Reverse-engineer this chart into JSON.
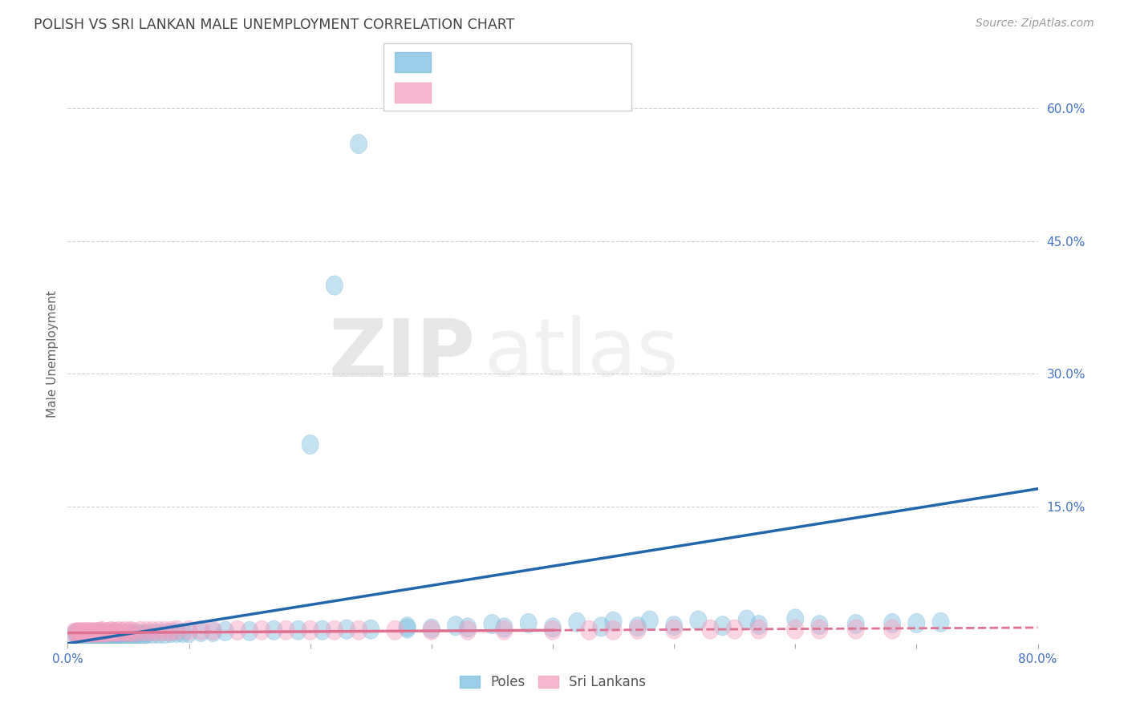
{
  "title": "POLISH VS SRI LANKAN MALE UNEMPLOYMENT CORRELATION CHART",
  "source_text": "Source: ZipAtlas.com",
  "ylabel": "Male Unemployment",
  "watermark_zip": "ZIP",
  "watermark_atlas": "atlas",
  "xlim": [
    0.0,
    0.8
  ],
  "ylim": [
    -0.005,
    0.65
  ],
  "xticks": [
    0.0,
    0.1,
    0.2,
    0.3,
    0.4,
    0.5,
    0.6,
    0.7,
    0.8
  ],
  "xtick_labels": [
    "0.0%",
    "",
    "",
    "",
    "",
    "",
    "",
    "",
    "80.0%"
  ],
  "ytick_positions": [
    0.15,
    0.3,
    0.45,
    0.6
  ],
  "ytick_labels": [
    "15.0%",
    "30.0%",
    "45.0%",
    "60.0%"
  ],
  "poles_color": "#7bbde0",
  "poles_edge_color": "#7bbde0",
  "srilankans_color": "#f4a0c0",
  "srilankans_edge_color": "#f4a0c0",
  "poles_line_color": "#2166ac",
  "srilankans_line_color": "#e07090",
  "poles_x": [
    0.005,
    0.007,
    0.008,
    0.01,
    0.01,
    0.012,
    0.013,
    0.015,
    0.015,
    0.016,
    0.017,
    0.018,
    0.02,
    0.02,
    0.02,
    0.022,
    0.022,
    0.025,
    0.025,
    0.026,
    0.027,
    0.028,
    0.028,
    0.03,
    0.03,
    0.032,
    0.033,
    0.035,
    0.035,
    0.037,
    0.04,
    0.04,
    0.042,
    0.043,
    0.045,
    0.047,
    0.05,
    0.052,
    0.053,
    0.055,
    0.057,
    0.06,
    0.063,
    0.065,
    0.07,
    0.075,
    0.08,
    0.085,
    0.09,
    0.095,
    0.1,
    0.11,
    0.12,
    0.13,
    0.15,
    0.17,
    0.19,
    0.21,
    0.23,
    0.25,
    0.28,
    0.3,
    0.33,
    0.36,
    0.4,
    0.44,
    0.47,
    0.5,
    0.54,
    0.57,
    0.62,
    0.65,
    0.68,
    0.7,
    0.72,
    0.35,
    0.38,
    0.42,
    0.45,
    0.48,
    0.28,
    0.32,
    0.52,
    0.56,
    0.6,
    0.2,
    0.22,
    0.24
  ],
  "poles_y": [
    0.005,
    0.007,
    0.006,
    0.005,
    0.007,
    0.005,
    0.006,
    0.004,
    0.006,
    0.005,
    0.005,
    0.006,
    0.004,
    0.005,
    0.007,
    0.004,
    0.006,
    0.005,
    0.006,
    0.005,
    0.004,
    0.005,
    0.006,
    0.004,
    0.005,
    0.004,
    0.005,
    0.004,
    0.006,
    0.005,
    0.005,
    0.006,
    0.005,
    0.006,
    0.005,
    0.006,
    0.005,
    0.005,
    0.006,
    0.005,
    0.006,
    0.005,
    0.005,
    0.006,
    0.006,
    0.006,
    0.006,
    0.007,
    0.007,
    0.007,
    0.007,
    0.008,
    0.008,
    0.009,
    0.009,
    0.01,
    0.01,
    0.01,
    0.011,
    0.011,
    0.012,
    0.012,
    0.013,
    0.013,
    0.013,
    0.014,
    0.014,
    0.015,
    0.015,
    0.016,
    0.016,
    0.017,
    0.018,
    0.018,
    0.019,
    0.017,
    0.018,
    0.019,
    0.02,
    0.021,
    0.014,
    0.015,
    0.021,
    0.022,
    0.023,
    0.22,
    0.4,
    0.56
  ],
  "srilankans_x": [
    0.005,
    0.007,
    0.008,
    0.01,
    0.012,
    0.013,
    0.015,
    0.017,
    0.018,
    0.02,
    0.022,
    0.024,
    0.025,
    0.027,
    0.028,
    0.03,
    0.032,
    0.034,
    0.036,
    0.038,
    0.04,
    0.042,
    0.045,
    0.047,
    0.05,
    0.052,
    0.055,
    0.06,
    0.065,
    0.07,
    0.075,
    0.08,
    0.085,
    0.09,
    0.1,
    0.11,
    0.12,
    0.14,
    0.16,
    0.18,
    0.2,
    0.22,
    0.24,
    0.27,
    0.3,
    0.33,
    0.36,
    0.4,
    0.43,
    0.45,
    0.47,
    0.5,
    0.53,
    0.55,
    0.57,
    0.6,
    0.62,
    0.65,
    0.68
  ],
  "srilankans_y": [
    0.007,
    0.007,
    0.008,
    0.007,
    0.008,
    0.007,
    0.008,
    0.007,
    0.008,
    0.007,
    0.008,
    0.007,
    0.008,
    0.008,
    0.009,
    0.007,
    0.008,
    0.008,
    0.009,
    0.008,
    0.008,
    0.009,
    0.008,
    0.009,
    0.008,
    0.009,
    0.008,
    0.009,
    0.009,
    0.009,
    0.009,
    0.009,
    0.009,
    0.01,
    0.01,
    0.01,
    0.01,
    0.01,
    0.01,
    0.01,
    0.01,
    0.01,
    0.01,
    0.01,
    0.01,
    0.01,
    0.01,
    0.01,
    0.01,
    0.01,
    0.011,
    0.011,
    0.011,
    0.011,
    0.011,
    0.011,
    0.011,
    0.011,
    0.011
  ],
  "background_color": "#ffffff",
  "grid_color": "#d0d0d0",
  "title_color": "#444444",
  "tick_color": "#4472c4"
}
